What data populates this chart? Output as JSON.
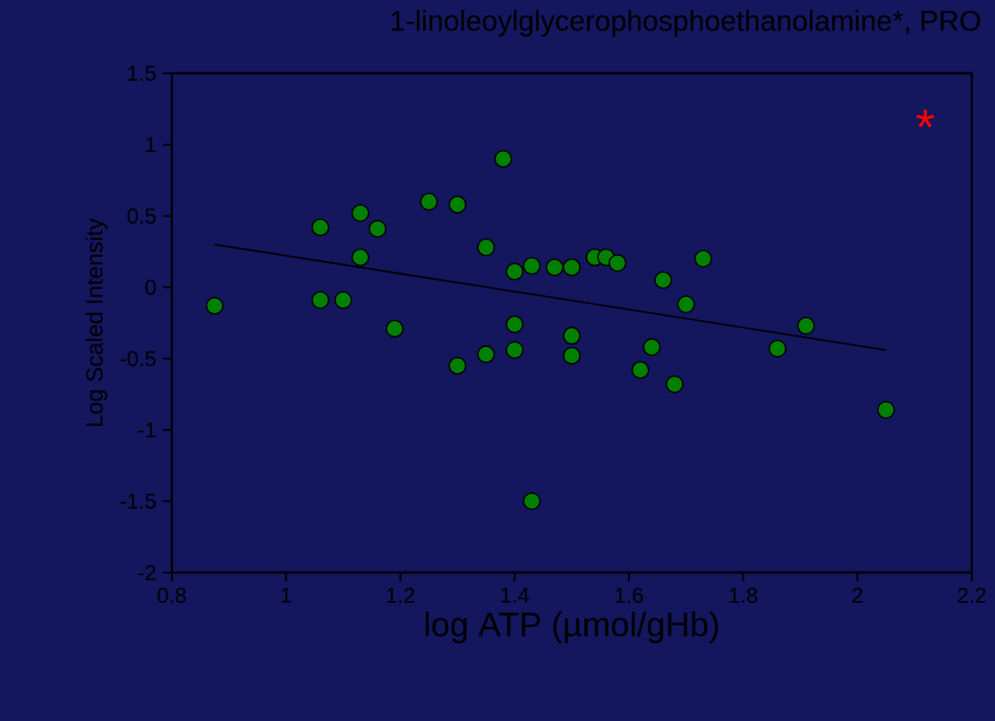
{
  "chart_data": {
    "type": "scatter",
    "title": "1-linoleoylglycerophosphoethanolamine*, PRO",
    "xlabel": "log ATP (µmol/gHb)",
    "ylabel": "Log Scaled Intensity",
    "annotations": [
      "*"
    ],
    "series": [
      {
        "color": "#008000",
        "marker": "circle",
        "x": [
          0.875,
          1.06,
          1.06,
          1.1,
          1.13,
          1.13,
          1.16,
          1.19,
          1.25,
          1.3,
          1.3,
          1.35,
          1.35,
          1.38,
          1.4,
          1.4,
          1.4,
          1.43,
          1.43,
          1.47,
          1.5,
          1.5,
          1.5,
          1.54,
          1.56,
          1.58,
          1.62,
          1.64,
          1.66,
          1.68,
          1.7,
          1.73,
          1.86,
          1.91,
          2.05
        ],
        "values": [
          -0.13,
          0.42,
          -0.09,
          -0.09,
          0.52,
          0.21,
          0.41,
          -0.29,
          0.6,
          0.58,
          -0.55,
          0.28,
          -0.47,
          0.9,
          0.11,
          -0.26,
          -0.44,
          0.15,
          -1.5,
          0.14,
          0.14,
          -0.34,
          -0.48,
          0.21,
          0.21,
          0.17,
          -0.58,
          -0.42,
          0.05,
          -0.68,
          -0.12,
          0.2,
          -0.43,
          -0.27,
          -0.86
        ]
      },
      {
        "type": "line",
        "color": "#000000",
        "marker": "none",
        "x": [
          0.875,
          2.05
        ],
        "values": [
          0.3,
          -0.44
        ]
      }
    ],
    "xlim": [
      0.8,
      2.2
    ],
    "xticks": [
      0.8,
      1,
      1.2,
      1.4,
      1.6,
      1.8,
      2,
      2.2
    ],
    "ylim": [
      -2,
      1.5
    ],
    "yticks": [
      -2,
      -1.5,
      -1,
      -0.5,
      0,
      0.5,
      1,
      1.5
    ],
    "grid": false
  }
}
